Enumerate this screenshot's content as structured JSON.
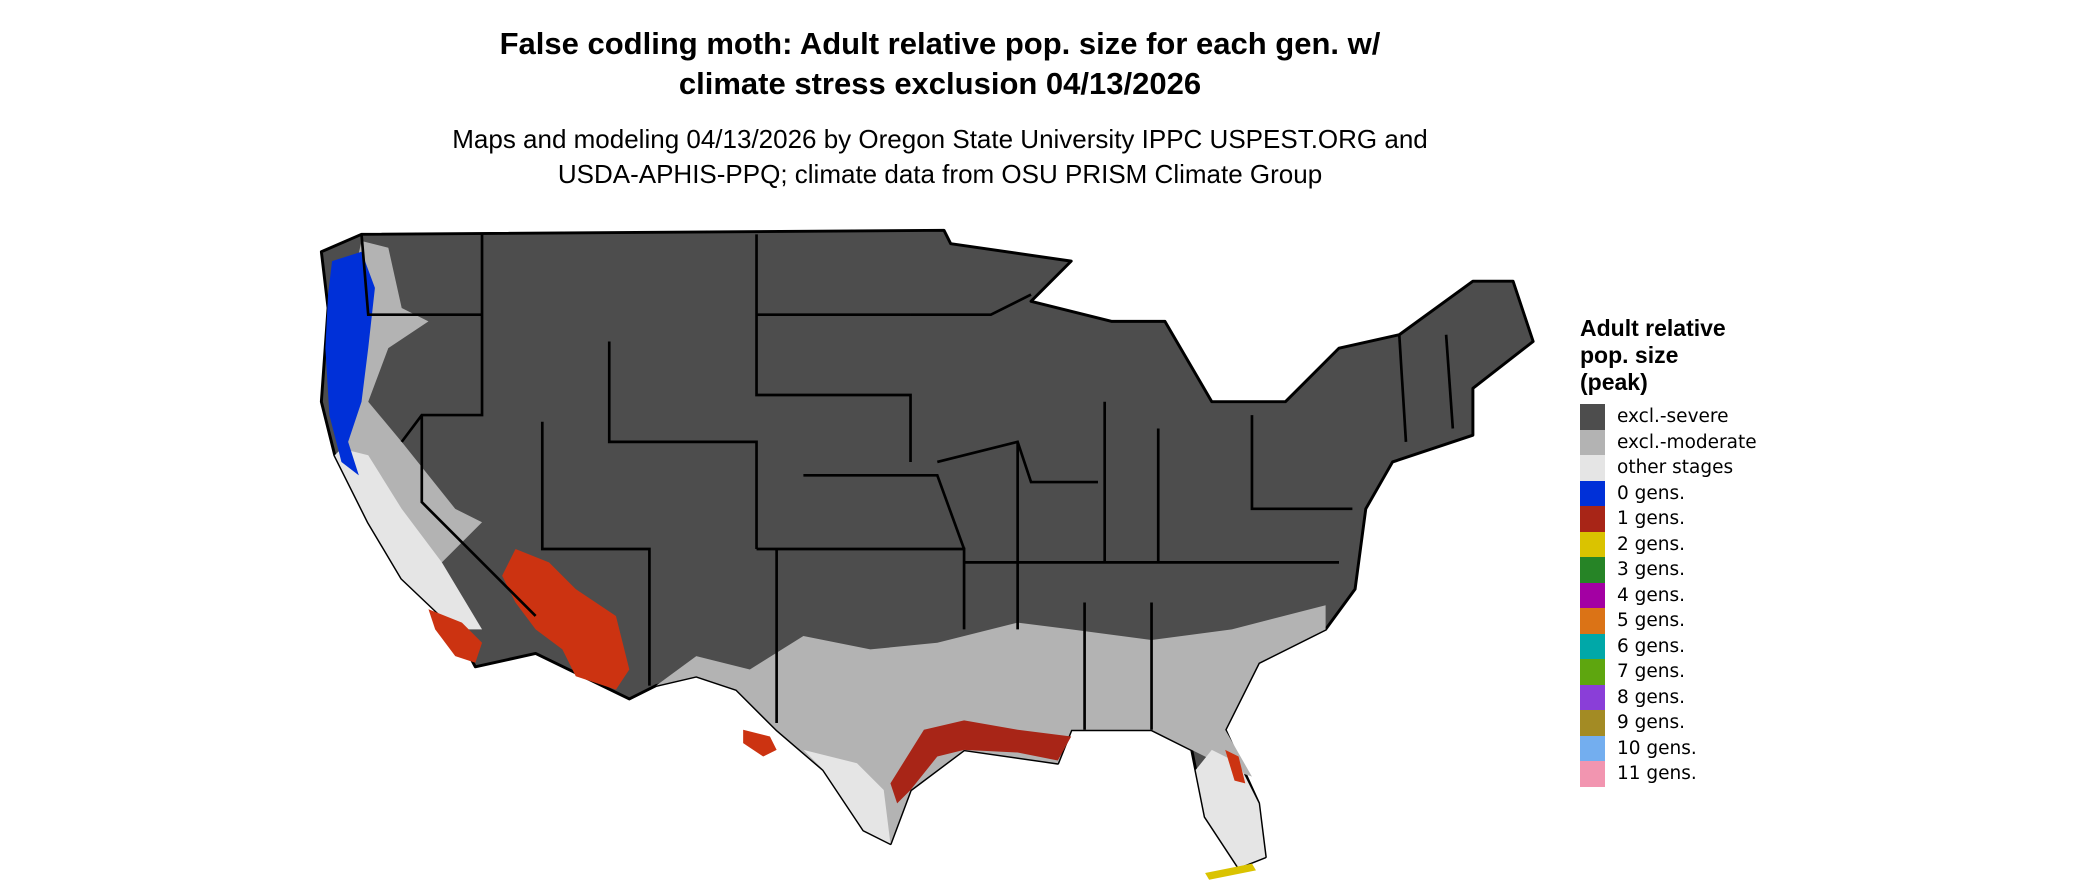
{
  "title": {
    "line1": "False codling moth: Adult relative pop. size for each gen. w/",
    "line2": "climate stress exclusion 04/13/2026"
  },
  "subtitle": {
    "line1": "Maps and modeling 04/13/2026 by Oregon State University IPPC USPEST.ORG and",
    "line2": "USDA-APHIS-PPQ; climate data from OSU PRISM Climate Group"
  },
  "map": {
    "region": "contiguous United States",
    "dominant_category": "excl.-severe"
  },
  "legend": {
    "title_lines": [
      "Adult relative",
      "pop. size",
      "(peak)"
    ],
    "items": [
      {
        "label": "excl.-severe",
        "color": "#4d4d4d"
      },
      {
        "label": "excl.-moderate",
        "color": "#b3b3b3"
      },
      {
        "label": "other stages",
        "color": "#e5e5e5"
      },
      {
        "label": "0 gens.",
        "color": "#0030d8"
      },
      {
        "label": "1 gens.",
        "color": "#a82517"
      },
      {
        "label": "2 gens.",
        "color": "#dac300"
      },
      {
        "label": "3 gens.",
        "color": "#268426"
      },
      {
        "label": "4 gens.",
        "color": "#a300a3"
      },
      {
        "label": "5 gens.",
        "color": "#db7316"
      },
      {
        "label": "6 gens.",
        "color": "#00a8a8"
      },
      {
        "label": "7 gens.",
        "color": "#5ea60f"
      },
      {
        "label": "8 gens.",
        "color": "#8a3ed8"
      },
      {
        "label": "9 gens.",
        "color": "#a38b24"
      },
      {
        "label": "10 gens.",
        "color": "#73aeef"
      },
      {
        "label": "11 gens.",
        "color": "#f295b0"
      }
    ]
  }
}
